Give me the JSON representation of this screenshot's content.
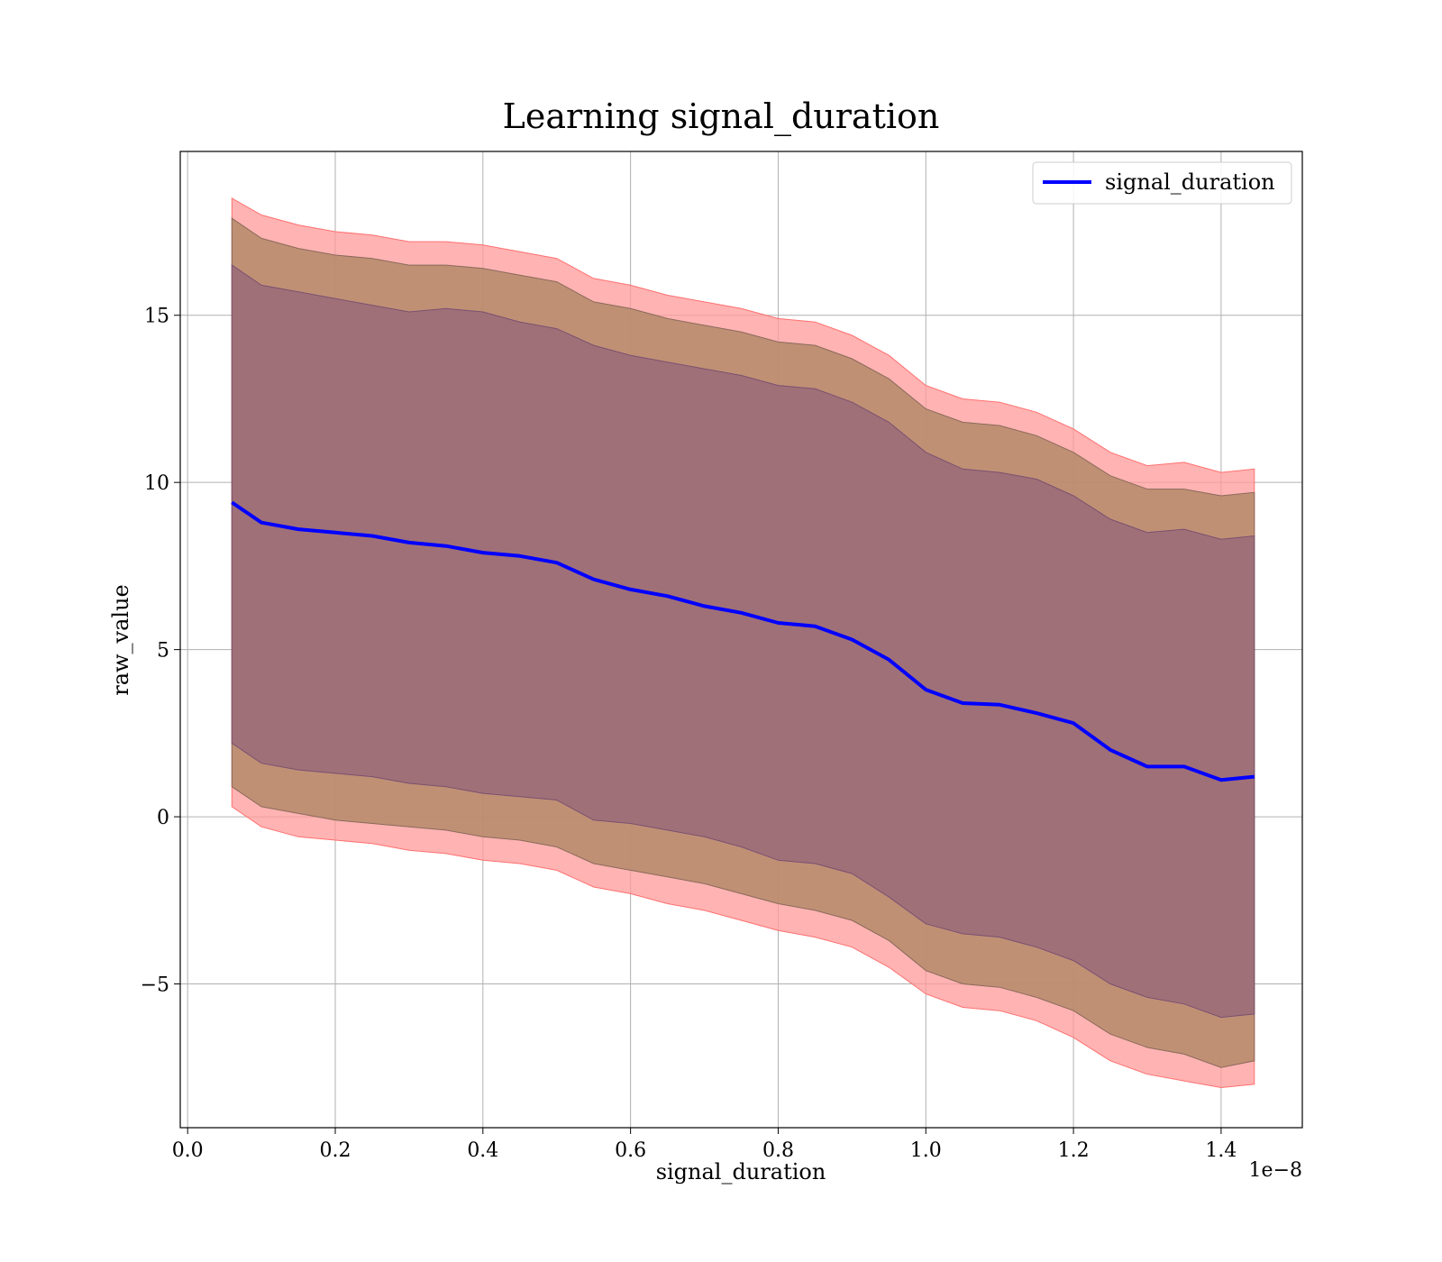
{
  "chart_data": {
    "type": "line",
    "title": "Learning signal_duration",
    "xlabel": "signal_duration",
    "ylabel": "raw_value",
    "x_offset_label": "1e−8",
    "x_ticks": [
      0.0,
      0.2,
      0.4,
      0.6,
      0.8,
      1.0,
      1.2,
      1.4
    ],
    "x_tick_labels": [
      "0.0",
      "0.2",
      "0.4",
      "0.6",
      "0.8",
      "1.0",
      "1.2",
      "1.4"
    ],
    "y_ticks": [
      -5,
      0,
      5,
      10,
      15
    ],
    "y_tick_labels": [
      "−5",
      "0",
      "5",
      "10",
      "15"
    ],
    "xlim": [
      -0.01,
      1.51
    ],
    "ylim": [
      -9.3,
      19.9
    ],
    "grid": true,
    "legend": {
      "position": "top-right",
      "entries": [
        "signal_duration"
      ]
    },
    "colors": {
      "mean_line": "#0000ff",
      "band_outer": "#ff9999",
      "band_middle": "#b5896a",
      "band_inner": "#a07078",
      "grid": "#b0b0b0"
    },
    "series": [
      {
        "name": "signal_duration",
        "x": [
          0.06,
          0.1,
          0.15,
          0.2,
          0.25,
          0.3,
          0.35,
          0.4,
          0.45,
          0.5,
          0.55,
          0.6,
          0.65,
          0.7,
          0.75,
          0.8,
          0.85,
          0.9,
          0.95,
          1.0,
          1.05,
          1.1,
          1.15,
          1.2,
          1.25,
          1.3,
          1.35,
          1.4,
          1.445
        ],
        "y": [
          9.4,
          8.8,
          8.6,
          8.5,
          8.4,
          8.2,
          8.1,
          7.9,
          7.8,
          7.6,
          7.1,
          6.8,
          6.6,
          6.3,
          6.1,
          5.8,
          5.7,
          5.3,
          4.7,
          3.8,
          3.4,
          3.35,
          3.1,
          2.8,
          2.0,
          1.5,
          1.5,
          1.1,
          1.2
        ],
        "band_inner": {
          "upper": [
            16.5,
            15.9,
            15.7,
            15.5,
            15.3,
            15.1,
            15.2,
            15.1,
            14.8,
            14.6,
            14.1,
            13.8,
            13.6,
            13.4,
            13.2,
            12.9,
            12.8,
            12.4,
            11.8,
            10.9,
            10.4,
            10.3,
            10.1,
            9.6,
            8.9,
            8.5,
            8.6,
            8.3,
            8.4
          ],
          "lower": [
            2.2,
            1.6,
            1.4,
            1.3,
            1.2,
            1.0,
            0.9,
            0.7,
            0.6,
            0.5,
            -0.1,
            -0.2,
            -0.4,
            -0.6,
            -0.9,
            -1.3,
            -1.4,
            -1.7,
            -2.4,
            -3.2,
            -3.5,
            -3.6,
            -3.9,
            -4.3,
            -5.0,
            -5.4,
            -5.6,
            -6.0,
            -5.9
          ]
        },
        "band_middle": {
          "upper": [
            17.9,
            17.3,
            17.0,
            16.8,
            16.7,
            16.5,
            16.5,
            16.4,
            16.2,
            16.0,
            15.4,
            15.2,
            14.9,
            14.7,
            14.5,
            14.2,
            14.1,
            13.7,
            13.1,
            12.2,
            11.8,
            11.7,
            11.4,
            10.9,
            10.2,
            9.8,
            9.8,
            9.6,
            9.7
          ],
          "lower": [
            0.9,
            0.3,
            0.1,
            -0.1,
            -0.2,
            -0.3,
            -0.4,
            -0.6,
            -0.7,
            -0.9,
            -1.4,
            -1.6,
            -1.8,
            -2.0,
            -2.3,
            -2.6,
            -2.8,
            -3.1,
            -3.7,
            -4.6,
            -5.0,
            -5.1,
            -5.4,
            -5.8,
            -6.5,
            -6.9,
            -7.1,
            -7.5,
            -7.3
          ]
        },
        "band_outer": {
          "upper": [
            18.5,
            18.0,
            17.7,
            17.5,
            17.4,
            17.2,
            17.2,
            17.1,
            16.9,
            16.7,
            16.1,
            15.9,
            15.6,
            15.4,
            15.2,
            14.9,
            14.8,
            14.4,
            13.8,
            12.9,
            12.5,
            12.4,
            12.1,
            11.6,
            10.9,
            10.5,
            10.6,
            10.3,
            10.4
          ],
          "lower": [
            0.3,
            -0.3,
            -0.6,
            -0.7,
            -0.8,
            -1.0,
            -1.1,
            -1.3,
            -1.4,
            -1.6,
            -2.1,
            -2.3,
            -2.6,
            -2.8,
            -3.1,
            -3.4,
            -3.6,
            -3.9,
            -4.5,
            -5.3,
            -5.7,
            -5.8,
            -6.1,
            -6.6,
            -7.3,
            -7.7,
            -7.9,
            -8.1,
            -8.0
          ]
        }
      }
    ]
  }
}
